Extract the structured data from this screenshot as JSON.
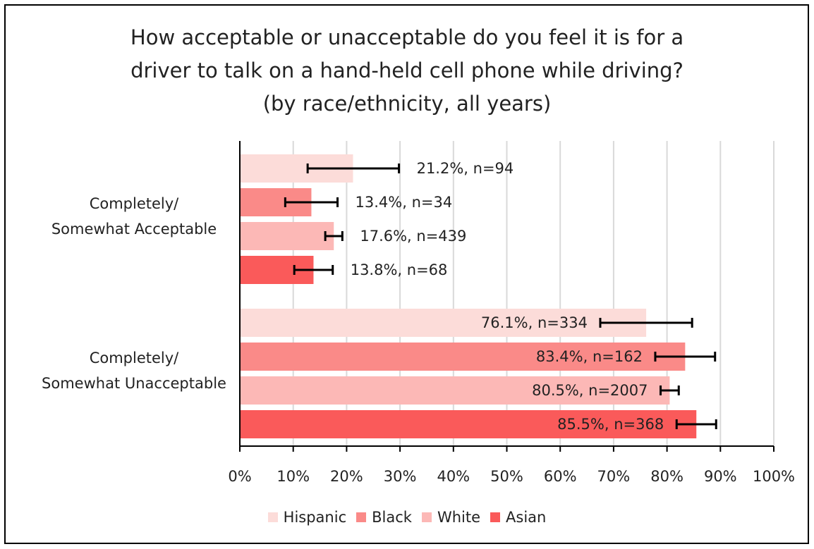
{
  "chart_data": {
    "type": "bar",
    "orientation": "horizontal",
    "title_lines": [
      "How acceptable or unacceptable do you feel it is for a",
      "driver to talk on a hand-held cell phone while driving?",
      "(by race/ethnicity, all years)"
    ],
    "categories": [
      [
        "Completely/",
        "Somewhat Acceptable"
      ],
      [
        "Completely/",
        "Somewhat Unacceptable"
      ]
    ],
    "series": [
      {
        "name": "Hispanic",
        "color": "#fcdcd9",
        "values": [
          21.2,
          76.1
        ],
        "error_low": [
          12.7,
          67.5
        ],
        "error_high": [
          29.8,
          84.7
        ],
        "labels": [
          "21.2%, n=94",
          "76.1%, n=334"
        ]
      },
      {
        "name": "Black",
        "color": "#fa8a88",
        "values": [
          13.4,
          83.4
        ],
        "error_low": [
          8.5,
          77.8
        ],
        "error_high": [
          18.3,
          89.0
        ],
        "labels": [
          "13.4%, n=34",
          "83.4%, n=162"
        ]
      },
      {
        "name": "White",
        "color": "#fcb8b6",
        "values": [
          17.6,
          80.5
        ],
        "error_low": [
          16.0,
          78.8
        ],
        "error_high": [
          19.2,
          82.2
        ],
        "labels": [
          "17.6%, n=439",
          "80.5%, n=2007"
        ]
      },
      {
        "name": "Asian",
        "color": "#fa5a5a",
        "values": [
          13.8,
          85.5
        ],
        "error_low": [
          10.2,
          81.8
        ],
        "error_high": [
          17.4,
          89.2
        ],
        "labels": [
          "13.8%, n=68",
          "85.5%, n=368"
        ]
      }
    ],
    "x_ticks": [
      "0%",
      "10%",
      "20%",
      "30%",
      "40%",
      "50%",
      "60%",
      "70%",
      "80%",
      "90%",
      "100%"
    ],
    "xlim": [
      0,
      100
    ],
    "grid": true,
    "legend_position": "bottom"
  }
}
